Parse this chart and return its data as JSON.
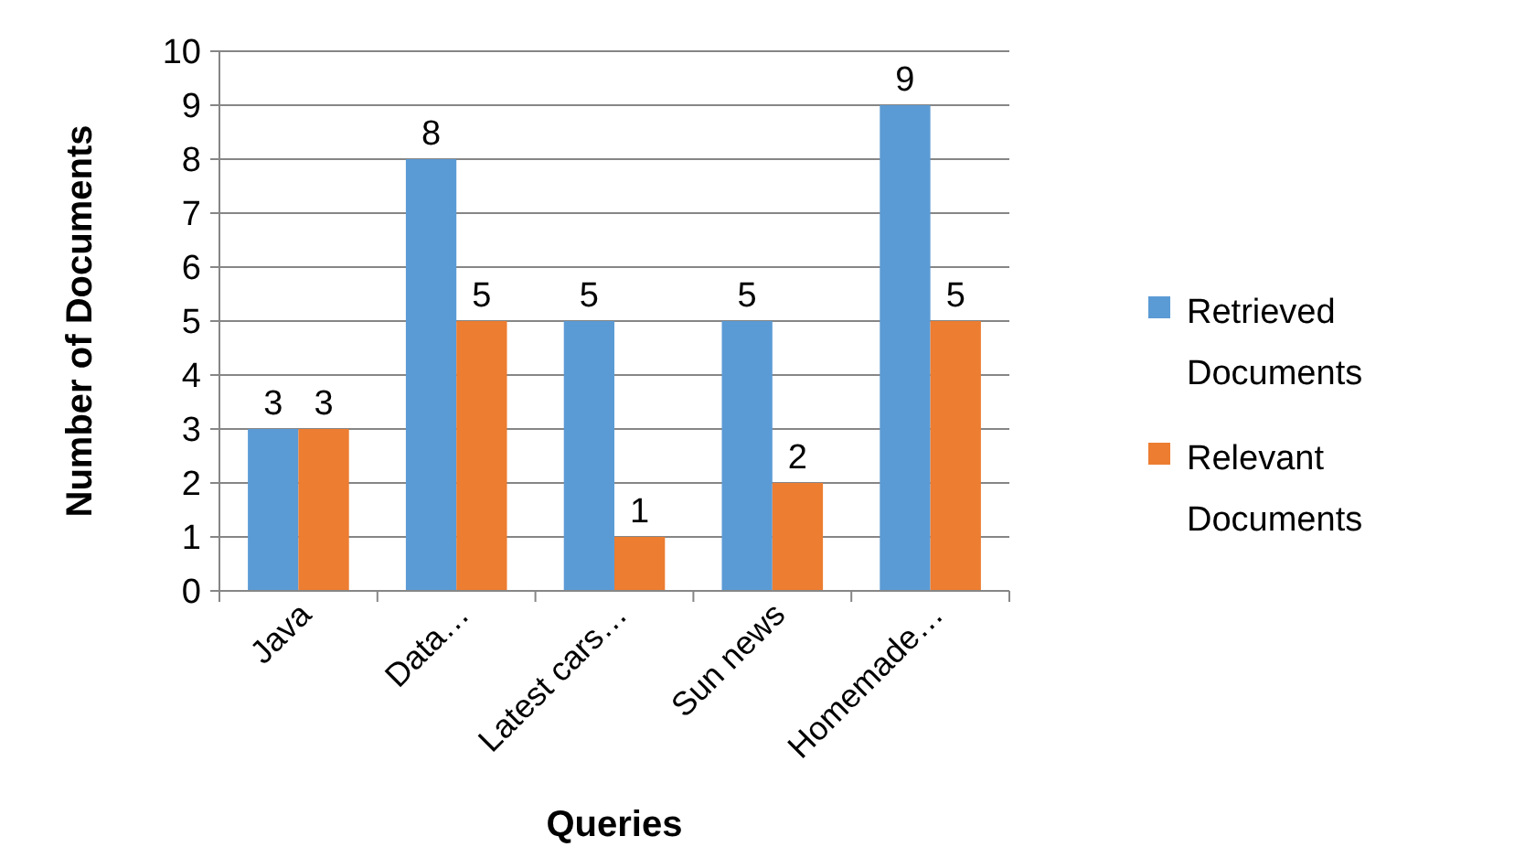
{
  "chart_data": {
    "type": "bar",
    "xlabel": "Queries",
    "ylabel": "Number of Documents",
    "categories": [
      "Java",
      "Data…",
      "Latest cars…",
      "Sun news",
      "Homemade…"
    ],
    "series": [
      {
        "name": "Retrieved Documents",
        "color": "#5b9bd5",
        "values": [
          3,
          8,
          5,
          5,
          9
        ]
      },
      {
        "name": "Relevant Documents",
        "color": "#ed7d31",
        "values": [
          3,
          5,
          1,
          2,
          5
        ]
      }
    ],
    "ylim": [
      0,
      10
    ],
    "yticks": [
      0,
      1,
      2,
      3,
      4,
      5,
      6,
      7,
      8,
      9,
      10
    ],
    "grid": "y",
    "legend": "right",
    "data_labels": true
  }
}
